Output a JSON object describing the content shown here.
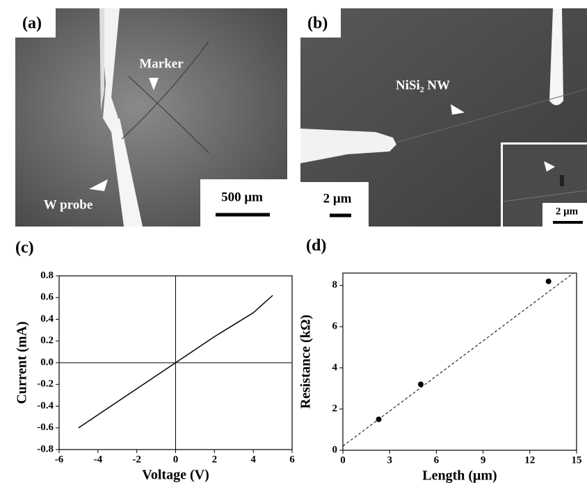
{
  "images": [
    {
      "label": "(a)",
      "annotations": [
        "Marker",
        "W probe"
      ],
      "scale_bar": "500 μm"
    },
    {
      "label": "(b)",
      "annotations": [
        "NiSi₂ NW"
      ],
      "scale_bar": "2 μm",
      "inset_scale_bar": "2 μm"
    }
  ],
  "chart_data": [
    {
      "type": "line",
      "label": "(c)",
      "x_label": "Voltage (V)",
      "y_label": "Current (mA)",
      "x": [
        -5,
        -4,
        -3,
        -2,
        -1,
        0,
        1,
        2,
        3,
        4,
        5
      ],
      "values": [
        -0.6,
        -0.48,
        -0.36,
        -0.24,
        -0.12,
        0,
        0.12,
        0.24,
        0.35,
        0.46,
        0.62
      ],
      "color": "#000000",
      "zero_lines": true,
      "xlim": [
        -6,
        6
      ],
      "xticks": [
        -6,
        -4,
        -2,
        0,
        2,
        4,
        6
      ],
      "ylim": [
        -0.8,
        0.8
      ],
      "yticks": [
        -0.8,
        -0.6,
        -0.4,
        -0.2,
        {
          "value": 0,
          "label": "0.0"
        },
        0.2,
        0.4,
        0.6,
        0.8
      ]
    },
    {
      "type": "scatter",
      "label": "(d)",
      "x_label": "Length (μm)",
      "y_label": "Resistance (kΩ)",
      "x": [
        2.3,
        5,
        13.2
      ],
      "values": [
        1.5,
        3.2,
        8.2
      ],
      "color": "#000000",
      "fit_line": {
        "x": [
          0,
          14.8
        ],
        "values": [
          0.2,
          8.6
        ]
      },
      "xlim": [
        0,
        15
      ],
      "xticks": [
        0,
        3,
        6,
        9,
        12,
        15
      ],
      "ylim": [
        0,
        8.6
      ],
      "yticks": [
        0,
        2,
        4,
        6,
        8
      ]
    }
  ]
}
